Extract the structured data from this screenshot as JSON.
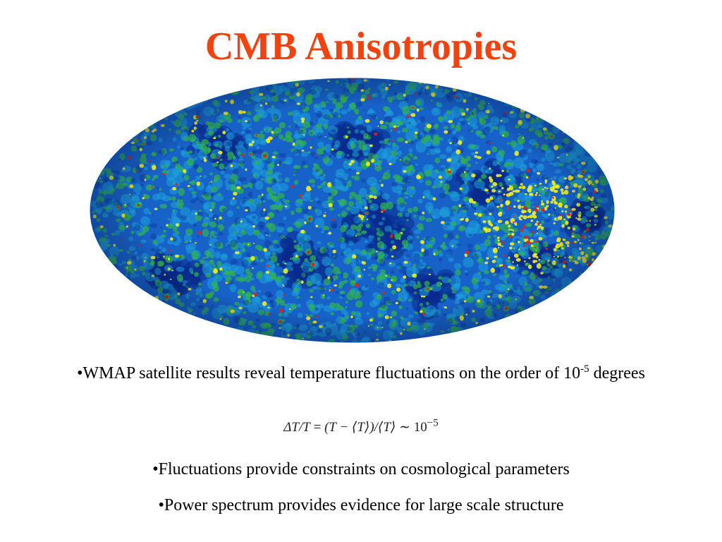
{
  "slide": {
    "title": "CMB Anisotropies",
    "title_color": "#f2420f",
    "bullets": [
      {
        "text_before_exponent": "•WMAP satellite results reveal temperature fluctuations on the order of 10",
        "exponent": "-5",
        "text_after_exponent": " degrees"
      },
      {
        "text": "•Fluctuations provide constraints on cosmological parameters"
      },
      {
        "text": "•Power spectrum provides evidence for large scale structure"
      }
    ],
    "formula": {
      "lhs": "ΔT/T",
      "equals": " = ",
      "rhs": "(T − ⟨T⟩)/⟨T⟩",
      "approx": " ∼ ",
      "base": "10",
      "exponent": "−5"
    },
    "map_colors": {
      "dark_blue": "#0a2a8c",
      "blue": "#1762c9",
      "cyan": "#1ea3d8",
      "green": "#32b34a",
      "yellow": "#f2ee22",
      "red": "#d8261b"
    }
  }
}
